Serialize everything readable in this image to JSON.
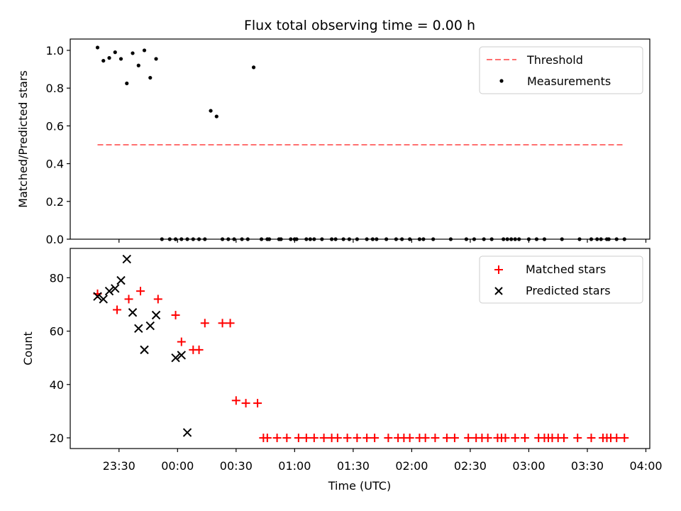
{
  "chart_data": [
    {
      "type": "scatter",
      "title": "Flux total observing time = 0.00 h",
      "xlabel": "",
      "ylabel": "Matched/Predicted stars",
      "ylim": [
        0,
        1.06
      ],
      "yticks": [
        0.0,
        0.2,
        0.4,
        0.6,
        0.8,
        1.0
      ],
      "yticklabels": [
        "0.0",
        "0.2",
        "0.4",
        "0.6",
        "0.8",
        "1.0"
      ],
      "legend_position": "top-right",
      "grid": false,
      "threshold": {
        "name": "Threshold",
        "x_start": "23:19",
        "x_end": "03:49",
        "y": 0.5,
        "color": "#ff7070",
        "style": "dashed"
      },
      "series": [
        {
          "name": "Measurements",
          "color": "#000000",
          "marker": "dot",
          "x": [
            "23:19",
            "23:22",
            "23:25",
            "23:28",
            "23:31",
            "23:34",
            "23:37",
            "23:40",
            "23:43",
            "23:46",
            "23:49",
            "23:52",
            "23:56",
            "23:59",
            "00:02",
            "00:05",
            "00:08",
            "00:11",
            "00:14",
            "00:17",
            "00:20",
            "00:23",
            "00:26",
            "00:29",
            "00:33",
            "00:36",
            "00:39",
            "00:43",
            "00:46",
            "00:47",
            "00:52",
            "00:53",
            "00:58",
            "01:00",
            "01:01",
            "01:06",
            "01:08",
            "01:10",
            "01:14",
            "01:19",
            "01:21",
            "01:25",
            "01:28",
            "01:32",
            "01:37",
            "01:40",
            "01:42",
            "01:47",
            "01:52",
            "01:55",
            "01:59",
            "02:04",
            "02:06",
            "02:11",
            "02:20",
            "02:28",
            "02:32",
            "02:37",
            "02:41",
            "02:47",
            "02:49",
            "02:51",
            "02:53",
            "02:55",
            "03:00",
            "03:04",
            "03:08",
            "03:17",
            "03:26",
            "03:32",
            "03:35",
            "03:37",
            "03:40",
            "03:41",
            "03:45",
            "03:49"
          ],
          "y": [
            1.015,
            0.945,
            0.96,
            0.99,
            0.955,
            0.825,
            0.985,
            0.92,
            1.0,
            0.855,
            0.955,
            0.0,
            0.0,
            0.0,
            0.0,
            0.0,
            0.0,
            0.0,
            0.0,
            0.68,
            0.65,
            0.0,
            0.0,
            0.0,
            0.0,
            0.0,
            0.91,
            0.0,
            0.0,
            0.0,
            0.0,
            0.0,
            0.0,
            0.0,
            0.0,
            0.0,
            0.0,
            0.0,
            0.0,
            0.0,
            0.0,
            0.0,
            0.0,
            0.0,
            0.0,
            0.0,
            0.0,
            0.0,
            0.0,
            0.0,
            0.0,
            0.0,
            0.0,
            0.0,
            0.0,
            0.0,
            0.0,
            0.0,
            0.0,
            0.0,
            0.0,
            0.0,
            0.0,
            0.0,
            0.0,
            0.0,
            0.0,
            0.0,
            0.0,
            0.0,
            0.0,
            0.0,
            0.0,
            0.0,
            0.0,
            0.0
          ]
        }
      ]
    },
    {
      "type": "scatter",
      "title": "",
      "xlabel": "Time (UTC)",
      "ylabel": "Count",
      "ylim": [
        16,
        91
      ],
      "yticks": [
        20,
        40,
        60,
        80
      ],
      "yticklabels": [
        "20",
        "40",
        "60",
        "80"
      ],
      "xlim": [
        "23:05",
        "04:02"
      ],
      "xticks": [
        "23:30",
        "00:00",
        "00:30",
        "01:00",
        "01:30",
        "02:00",
        "02:30",
        "03:00",
        "03:30",
        "04:00"
      ],
      "xticklabels": [
        "23:30",
        "00:00",
        "00:30",
        "01:00",
        "01:30",
        "02:00",
        "02:30",
        "03:00",
        "03:30",
        "04:00"
      ],
      "legend_position": "top-right",
      "grid": false,
      "series": [
        {
          "name": "Matched stars",
          "color": "#ff0000",
          "marker": "plus",
          "x": [
            "23:19",
            "23:29",
            "23:35",
            "23:41",
            "23:50",
            "23:59",
            "00:02",
            "00:08",
            "00:11",
            "00:14",
            "00:23",
            "00:27",
            "00:30",
            "00:35",
            "00:41",
            "00:44",
            "00:46",
            "00:51",
            "00:56",
            "01:02",
            "01:06",
            "01:10",
            "01:15",
            "01:19",
            "01:22",
            "01:27",
            "01:32",
            "01:37",
            "01:41",
            "01:48",
            "01:53",
            "01:56",
            "01:59",
            "02:04",
            "02:07",
            "02:12",
            "02:18",
            "02:22",
            "02:29",
            "02:33",
            "02:36",
            "02:39",
            "02:44",
            "02:46",
            "02:48",
            "02:53",
            "02:58",
            "03:05",
            "03:08",
            "03:10",
            "03:12",
            "03:15",
            "03:18",
            "03:25",
            "03:32",
            "03:38",
            "03:40",
            "03:42",
            "03:45",
            "03:49"
          ],
          "y": [
            74,
            68,
            72,
            75,
            72,
            66,
            56,
            53,
            53,
            63,
            63,
            63,
            34,
            33,
            33,
            20,
            20,
            20,
            20,
            20,
            20,
            20,
            20,
            20,
            20,
            20,
            20,
            20,
            20,
            20,
            20,
            20,
            20,
            20,
            20,
            20,
            20,
            20,
            20,
            20,
            20,
            20,
            20,
            20,
            20,
            20,
            20,
            20,
            20,
            20,
            20,
            20,
            20,
            20,
            20,
            20,
            20,
            20,
            20,
            20
          ]
        },
        {
          "name": "Predicted stars",
          "color": "#000000",
          "marker": "x",
          "x": [
            "23:19",
            "23:22",
            "23:25",
            "23:28",
            "23:31",
            "23:34",
            "23:37",
            "23:40",
            "23:43",
            "23:46",
            "23:49",
            "23:59",
            "00:02",
            "00:05"
          ],
          "y": [
            73,
            72,
            75,
            76,
            79,
            87,
            67,
            61,
            53,
            62,
            66,
            50,
            51,
            22
          ]
        }
      ]
    }
  ]
}
